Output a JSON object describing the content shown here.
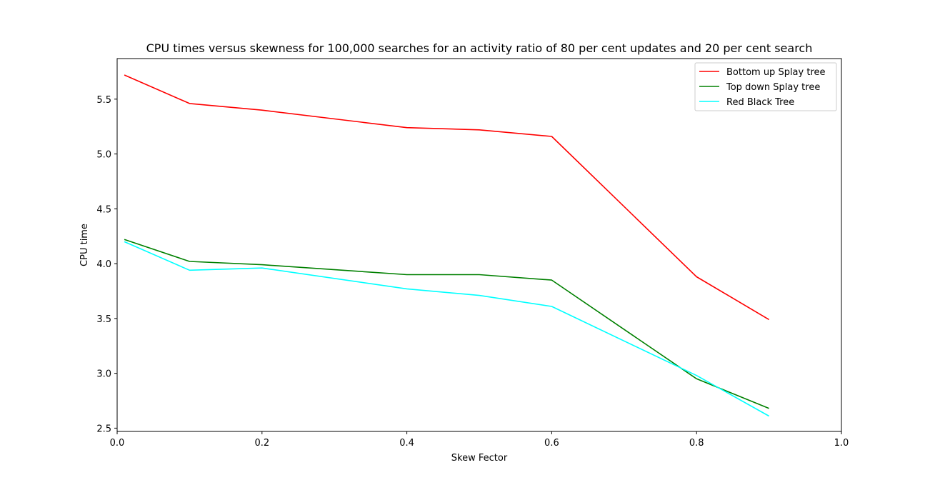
{
  "chart_data": {
    "type": "line",
    "title": "CPU times versus skewness for 100,000 searches for an activity ratio of 80 per cent updates and 20 per cent search",
    "xlabel": "Skew Fector",
    "ylabel": "CPU time",
    "xlim": [
      0.0,
      1.0
    ],
    "ylim": [
      2.47,
      5.87
    ],
    "x_ticks": [
      "0.0",
      "0.2",
      "0.4",
      "0.6",
      "0.8",
      "1.0"
    ],
    "y_ticks": [
      "2.5",
      "3.0",
      "3.5",
      "4.0",
      "4.5",
      "5.0",
      "5.5"
    ],
    "grid": false,
    "legend_position": "top-right",
    "x": [
      0.01,
      0.1,
      0.2,
      0.4,
      0.5,
      0.6,
      0.8,
      0.9
    ],
    "series": [
      {
        "name": "Bottom up Splay tree",
        "color": "#ff0000",
        "values": [
          5.72,
          5.46,
          5.4,
          5.24,
          5.22,
          5.16,
          3.88,
          3.49
        ]
      },
      {
        "name": "Top down Splay tree",
        "color": "#008000",
        "values": [
          4.22,
          4.02,
          3.99,
          3.9,
          3.9,
          3.85,
          2.95,
          2.68
        ]
      },
      {
        "name": "Red Black Tree",
        "color": "#00ffff",
        "values": [
          4.2,
          3.94,
          3.96,
          3.77,
          3.71,
          3.61,
          2.98,
          2.61
        ]
      }
    ]
  }
}
